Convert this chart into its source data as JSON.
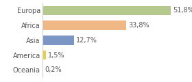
{
  "categories": [
    "Europa",
    "Africa",
    "Asia",
    "America",
    "Oceania"
  ],
  "values": [
    51.8,
    33.8,
    12.7,
    1.5,
    0.2
  ],
  "labels": [
    "51,8%",
    "33,8%",
    "12,7%",
    "1,5%",
    "0,2%"
  ],
  "bar_colors": [
    "#b5c98e",
    "#f0b884",
    "#7b96c4",
    "#e8cf4a",
    "#c0c0c0"
  ],
  "background_color": "#ffffff",
  "xlim": [
    0,
    58
  ],
  "label_fontsize": 7.0,
  "tick_fontsize": 7.0,
  "bar_height": 0.62
}
